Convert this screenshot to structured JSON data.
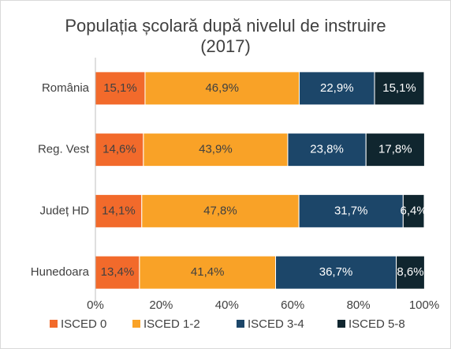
{
  "chart_data": {
    "type": "stacked-barh",
    "title": "Populația școlară după nivelul de instruire (2017)",
    "categories": [
      "România",
      "Reg. Vest",
      "Județ HD",
      "Hunedoara"
    ],
    "series": [
      {
        "name": "ISCED 0",
        "color": "#f26a2b",
        "label_color": "#404040",
        "values": [
          15.1,
          14.6,
          14.1,
          13.4
        ],
        "value_labels": [
          "15,1%",
          "14,6%",
          "14,1%",
          "13,4%"
        ]
      },
      {
        "name": "ISCED 1-2",
        "color": "#f9a227",
        "label_color": "#404040",
        "values": [
          46.9,
          43.9,
          47.8,
          41.4
        ],
        "value_labels": [
          "46,9%",
          "43,9%",
          "47,8%",
          "41,4%"
        ]
      },
      {
        "name": "ISCED 3-4",
        "color": "#1c4669",
        "label_color": "#ffffff",
        "values": [
          22.9,
          23.8,
          31.7,
          36.7
        ],
        "value_labels": [
          "22,9%",
          "23,8%",
          "31,7%",
          "36,7%"
        ]
      },
      {
        "name": "ISCED 5-8",
        "color": "#10262f",
        "label_color": "#ffffff",
        "values": [
          15.1,
          17.8,
          6.4,
          8.6
        ],
        "value_labels": [
          "15,1%",
          "17,8%",
          "6,4%",
          "8,6%"
        ]
      }
    ],
    "xlim": [
      0,
      100
    ],
    "xticks": [
      {
        "value": 0,
        "label": "0%"
      },
      {
        "value": 20,
        "label": "20%"
      },
      {
        "value": 40,
        "label": "40%"
      },
      {
        "value": 60,
        "label": "60%"
      },
      {
        "value": 80,
        "label": "80%"
      },
      {
        "value": 100,
        "label": "100%"
      }
    ],
    "legend": "bottom"
  }
}
